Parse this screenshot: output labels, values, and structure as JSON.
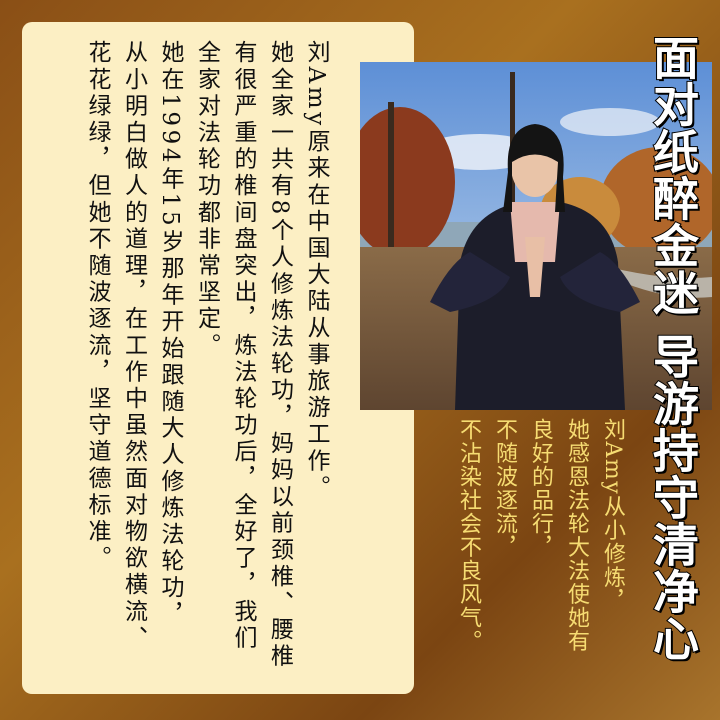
{
  "title": "面对纸醉金迷 导游持守清净心",
  "body": {
    "columns": [
      "刘Amy原来在中国大陆从事旅游工作。",
      "她全家一共有8个人修炼法轮功，妈妈以前颈椎、腰椎",
      "有很严重的椎间盘突出，炼法轮功后，全好了，我们",
      "全家对法轮功都非常坚定。",
      "她在1994年15岁那年开始跟随大人修炼法轮功，",
      "从小明白做人的道理，在工作中虽然面对物欲横流、",
      "花花绿绿，但她不随波逐流，坚守道德标准。"
    ]
  },
  "caption": {
    "columns": [
      "刘Amy从小修炼，",
      "她感恩法轮大法使她有",
      "良好的品行，",
      "不随波逐流，",
      "不沾染社会不良风气。"
    ]
  }
}
